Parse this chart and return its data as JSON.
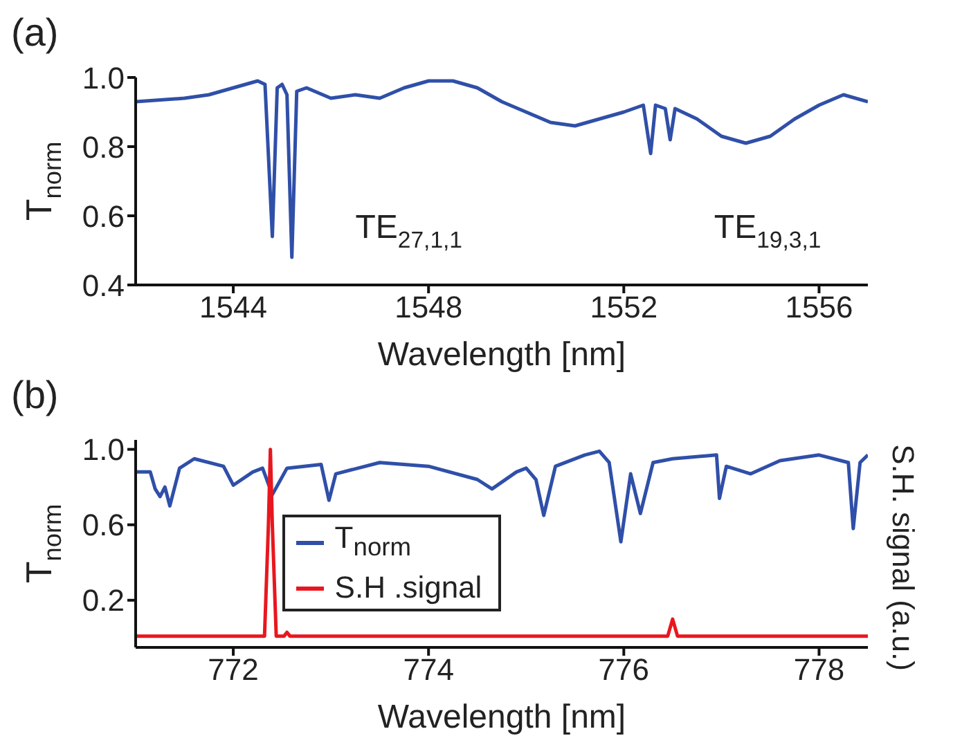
{
  "chart_data": [
    {
      "type": "line",
      "title": "(a)",
      "xlabel": "Wavelength [nm]",
      "ylabel": "T$_{norm}$",
      "xlim": [
        1542,
        1557
      ],
      "xticks": [
        1544,
        1548,
        1552,
        1556
      ],
      "ylim": [
        0.4,
        1.0
      ],
      "yticks": [
        0.4,
        0.6,
        0.8,
        {
          "value": 1.0,
          "label": "1.0"
        }
      ],
      "marker": "none",
      "line_style": "solid",
      "legend": false,
      "annotations": [
        "TE$_{27,1,1}$",
        "TE$_{19,3,1}$"
      ],
      "series": [
        {
          "color": "#2f4fa8",
          "x": [
            1542.0,
            1543.0,
            1543.5,
            1544.0,
            1544.5,
            1544.65,
            1544.8,
            1544.9,
            1545.0,
            1545.1,
            1545.2,
            1545.3,
            1545.5,
            1546.0,
            1546.5,
            1547.0,
            1547.5,
            1548.0,
            1548.5,
            1549.0,
            1549.5,
            1550.0,
            1550.5,
            1551.0,
            1551.5,
            1552.0,
            1552.4,
            1552.55,
            1552.65,
            1552.85,
            1552.95,
            1553.05,
            1553.5,
            1554.0,
            1554.5,
            1555.0,
            1555.5,
            1556.0,
            1556.5,
            1557.0
          ],
          "values": [
            0.93,
            0.94,
            0.95,
            0.97,
            0.99,
            0.98,
            0.54,
            0.97,
            0.98,
            0.95,
            0.48,
            0.96,
            0.97,
            0.94,
            0.95,
            0.94,
            0.97,
            0.99,
            0.99,
            0.97,
            0.93,
            0.9,
            0.87,
            0.86,
            0.88,
            0.9,
            0.92,
            0.78,
            0.92,
            0.91,
            0.82,
            0.91,
            0.88,
            0.83,
            0.81,
            0.83,
            0.88,
            0.92,
            0.95,
            0.93
          ]
        }
      ]
    },
    {
      "type": "line",
      "title": "(b)",
      "xlabel": "Wavelength [nm]",
      "ylabel": "T$_{norm}$",
      "y2label": "S.H. signal (a.u.)",
      "xlim": [
        771,
        778.5
      ],
      "xticks": [
        772,
        774,
        776,
        778
      ],
      "ylim": [
        -0.05,
        1.05
      ],
      "yticks": [
        0.2,
        0.6,
        {
          "value": 1.0,
          "label": "1.0"
        }
      ],
      "marker": "none",
      "line_style": "solid",
      "legend": "bottom left",
      "series": [
        {
          "name": "T$_{norm}$",
          "color": "#2f4fa8",
          "x": [
            771.0,
            771.15,
            771.2,
            771.25,
            771.3,
            771.35,
            771.45,
            771.6,
            771.9,
            772.0,
            772.2,
            772.3,
            772.4,
            772.55,
            772.9,
            772.98,
            773.05,
            773.5,
            774.0,
            774.5,
            774.65,
            774.9,
            775.0,
            775.1,
            775.18,
            775.3,
            775.6,
            775.75,
            775.85,
            775.97,
            776.07,
            776.17,
            776.3,
            776.5,
            776.95,
            776.98,
            777.05,
            777.3,
            777.6,
            778.0,
            778.3,
            778.35,
            778.42,
            778.5
          ],
          "values": [
            0.88,
            0.88,
            0.79,
            0.75,
            0.8,
            0.7,
            0.9,
            0.95,
            0.91,
            0.81,
            0.88,
            0.9,
            0.76,
            0.9,
            0.92,
            0.73,
            0.87,
            0.93,
            0.91,
            0.84,
            0.79,
            0.88,
            0.9,
            0.84,
            0.65,
            0.91,
            0.97,
            0.99,
            0.93,
            0.51,
            0.87,
            0.66,
            0.93,
            0.95,
            0.97,
            0.74,
            0.91,
            0.87,
            0.94,
            0.97,
            0.93,
            0.58,
            0.93,
            0.97
          ]
        },
        {
          "name": "S.H .signal",
          "color": "#e8171f",
          "x": [
            771.0,
            772.32,
            772.36,
            772.38,
            772.4,
            772.44,
            772.52,
            772.55,
            772.58,
            776.45,
            776.5,
            776.55,
            778.5
          ],
          "values": [
            0.01,
            0.01,
            0.6,
            1.0,
            0.6,
            0.01,
            0.01,
            0.03,
            0.01,
            0.01,
            0.1,
            0.01,
            0.01
          ]
        }
      ]
    }
  ]
}
